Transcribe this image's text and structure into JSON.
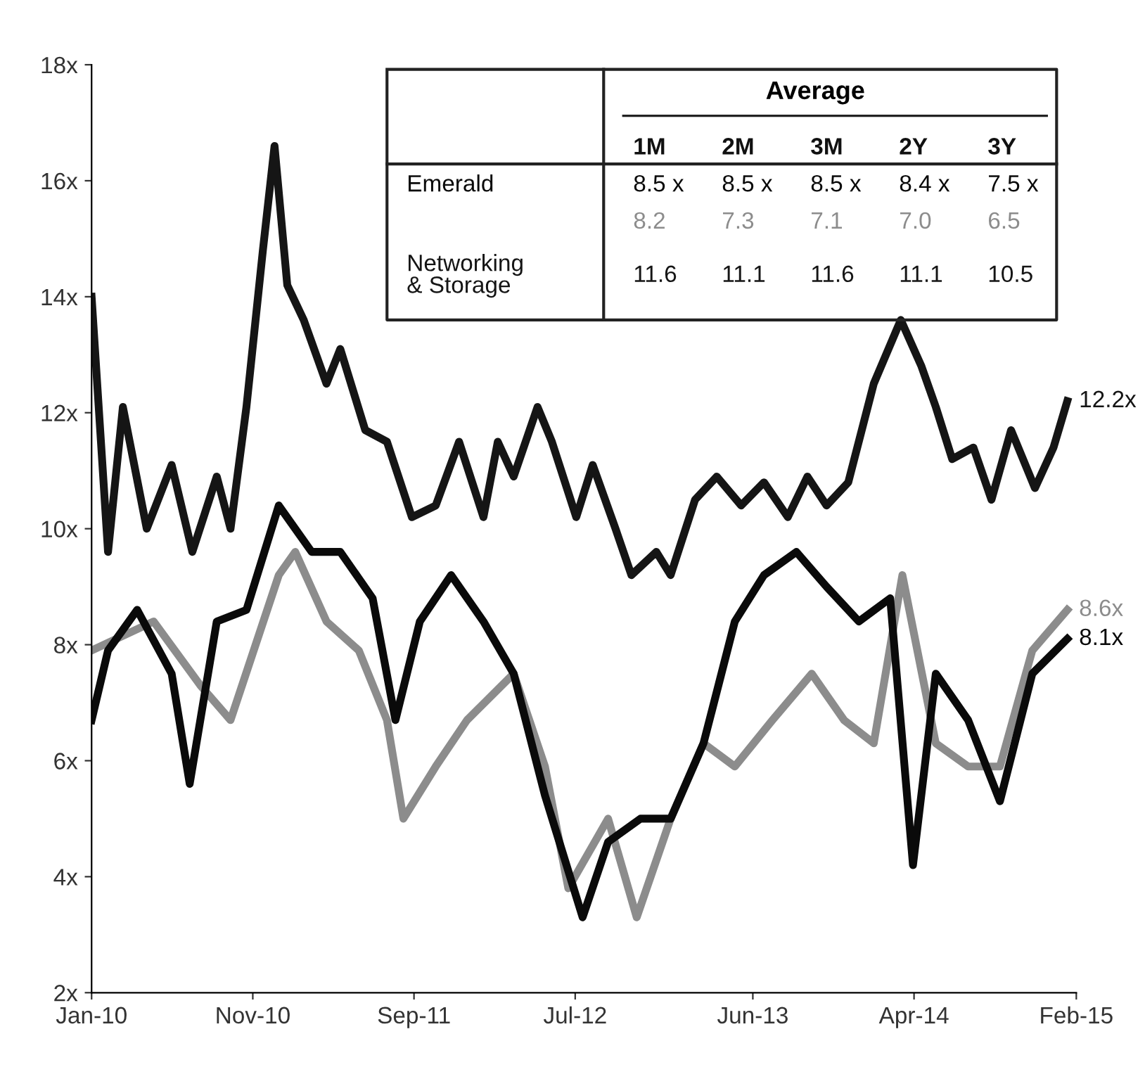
{
  "chart_data": {
    "type": "line",
    "series": [
      {
        "color": "#151515",
        "x": [
          "2010-01-01",
          "2010-02-01",
          "2010-03-01",
          "2010-04-15",
          "2010-06-01",
          "2010-07-10",
          "2010-08-25",
          "2010-09-20",
          "2010-10-20",
          "2010-11-20",
          "2010-12-12",
          "2011-01-05",
          "2011-02-05",
          "2011-03-20",
          "2011-04-15",
          "2011-06-01",
          "2011-07-12",
          "2011-08-28",
          "2011-10-12",
          "2011-11-25",
          "2012-01-10",
          "2012-02-06",
          "2012-03-07",
          "2012-04-21",
          "2012-05-18",
          "2012-07-03",
          "2012-08-03",
          "2012-09-15",
          "2012-10-15",
          "2012-12-01",
          "2012-12-28",
          "2013-02-12",
          "2013-03-25",
          "2013-05-10",
          "2013-06-22",
          "2013-08-06",
          "2013-09-12",
          "2013-10-18",
          "2013-11-28",
          "2014-01-15",
          "2014-03-07",
          "2014-04-15",
          "2014-05-12",
          "2014-06-12",
          "2014-07-22",
          "2014-08-25",
          "2014-10-01",
          "2014-11-15",
          "2014-12-20",
          "2015-01-15"
        ],
        "values": [
          14,
          9.6,
          12.1,
          10,
          11.1,
          9.6,
          10.9,
          10,
          12.1,
          14.8,
          16.6,
          14.2,
          13.6,
          12.5,
          13.1,
          11.7,
          11.5,
          10.2,
          10.4,
          11.5,
          10.2,
          11.5,
          10.9,
          12.1,
          11.5,
          10.2,
          11.1,
          10,
          9.2,
          9.6,
          9.2,
          10.5,
          10.9,
          10.4,
          10.8,
          10.2,
          10.9,
          10.4,
          10.8,
          12.5,
          13.6,
          12.8,
          12.1,
          11.2,
          11.4,
          10.5,
          11.7,
          10.7,
          11.4,
          12.2
        ]
      },
      {
        "color": "#8c8c8c",
        "x": [
          "2010-01-01",
          "2010-04-28",
          "2010-07-25",
          "2010-09-20",
          "2010-12-20",
          "2011-01-20",
          "2011-03-20",
          "2011-05-20",
          "2011-07-12",
          "2011-08-12",
          "2011-10-12",
          "2011-12-10",
          "2012-03-07",
          "2012-05-05",
          "2012-06-18",
          "2012-09-01",
          "2012-10-25",
          "2012-12-28",
          "2013-02-28",
          "2013-04-28",
          "2013-07-08",
          "2013-09-20",
          "2013-11-20",
          "2014-01-15",
          "2014-03-10",
          "2014-05-12",
          "2014-07-12",
          "2014-09-10",
          "2014-11-10",
          "2015-01-15"
        ],
        "values": [
          7.9,
          8.4,
          7.3,
          6.7,
          9.2,
          9.6,
          8.4,
          7.9,
          6.7,
          5.0,
          5.9,
          6.7,
          7.5,
          5.9,
          3.8,
          5.0,
          3.3,
          5.0,
          6.3,
          5.9,
          6.7,
          7.5,
          6.7,
          6.3,
          9.2,
          6.3,
          5.9,
          5.9,
          7.9,
          8.6
        ]
      },
      {
        "color": "#0a0a0a",
        "x": [
          "2010-01-01",
          "2010-02-01",
          "2010-03-28",
          "2010-06-01",
          "2010-07-05",
          "2010-08-25",
          "2010-10-20",
          "2010-12-20",
          "2011-02-20",
          "2011-04-15",
          "2011-06-15",
          "2011-07-28",
          "2011-09-12",
          "2011-11-10",
          "2012-01-10",
          "2012-03-07",
          "2012-05-05",
          "2012-07-15",
          "2012-09-01",
          "2012-11-01",
          "2012-12-28",
          "2013-02-28",
          "2013-04-28",
          "2013-06-22",
          "2013-08-22",
          "2013-10-18",
          "2013-12-18",
          "2014-02-15",
          "2014-03-30",
          "2014-05-12",
          "2014-07-12",
          "2014-09-10",
          "2014-11-10",
          "2015-01-15"
        ],
        "values": [
          6.7,
          7.9,
          8.6,
          7.5,
          5.6,
          8.4,
          8.6,
          10.4,
          9.6,
          9.6,
          8.8,
          6.7,
          8.4,
          9.2,
          8.4,
          7.5,
          5.4,
          3.3,
          4.6,
          5.0,
          5.0,
          6.3,
          8.4,
          9.2,
          9.6,
          9.0,
          8.4,
          8.8,
          4.2,
          7.5,
          6.7,
          5.3,
          7.5,
          8.1
        ]
      }
    ],
    "xlim": [
      "2010-01-01",
      "2015-02-01"
    ],
    "xticks": [
      {
        "value": "2010-01-01",
        "label": "Jan-10"
      },
      {
        "value": "2010-11-01",
        "label": "Nov-10"
      },
      {
        "value": "2011-09-01",
        "label": "Sep-11"
      },
      {
        "value": "2012-07-01",
        "label": "Jul-12"
      },
      {
        "value": "2013-06-01",
        "label": "Jun-13"
      },
      {
        "value": "2014-04-01",
        "label": "Apr-14"
      },
      {
        "value": "2015-02-01",
        "label": "Feb-15"
      }
    ],
    "ylim": [
      2,
      18
    ],
    "yticks": [
      {
        "value": 2,
        "label": "2x"
      },
      {
        "value": 4,
        "label": "4x"
      },
      {
        "value": 6,
        "label": "6x"
      },
      {
        "value": 8,
        "label": "8x"
      },
      {
        "value": 10,
        "label": "10x"
      },
      {
        "value": 12,
        "label": "12x"
      },
      {
        "value": 14,
        "label": "14x"
      },
      {
        "value": 16,
        "label": "16x"
      },
      {
        "value": 18,
        "label": "18x"
      }
    ],
    "line_style": "solid",
    "marker": "none",
    "grid": false,
    "legend": false,
    "annotations": [
      {
        "text": "12.2x",
        "x": "2015-01-15",
        "y": 12.2
      },
      {
        "text": "8.6x",
        "x": "2015-01-15",
        "y": 8.6
      },
      {
        "text": "8.1x",
        "x": "2015-01-15",
        "y": 8.1
      },
      "Average",
      "\t1M\t2M\t3M\t2Y\t3Y",
      "Emerald\t8.5 x\t8.5 x\t8.5 x\t8.4 x\t7.5 x",
      "\t8.2\t7.3\t7.1\t7.0\t6.5",
      "Networking\n& Storage\t11.6\t11.1\t11.6\t11.1\t10.5"
    ]
  }
}
